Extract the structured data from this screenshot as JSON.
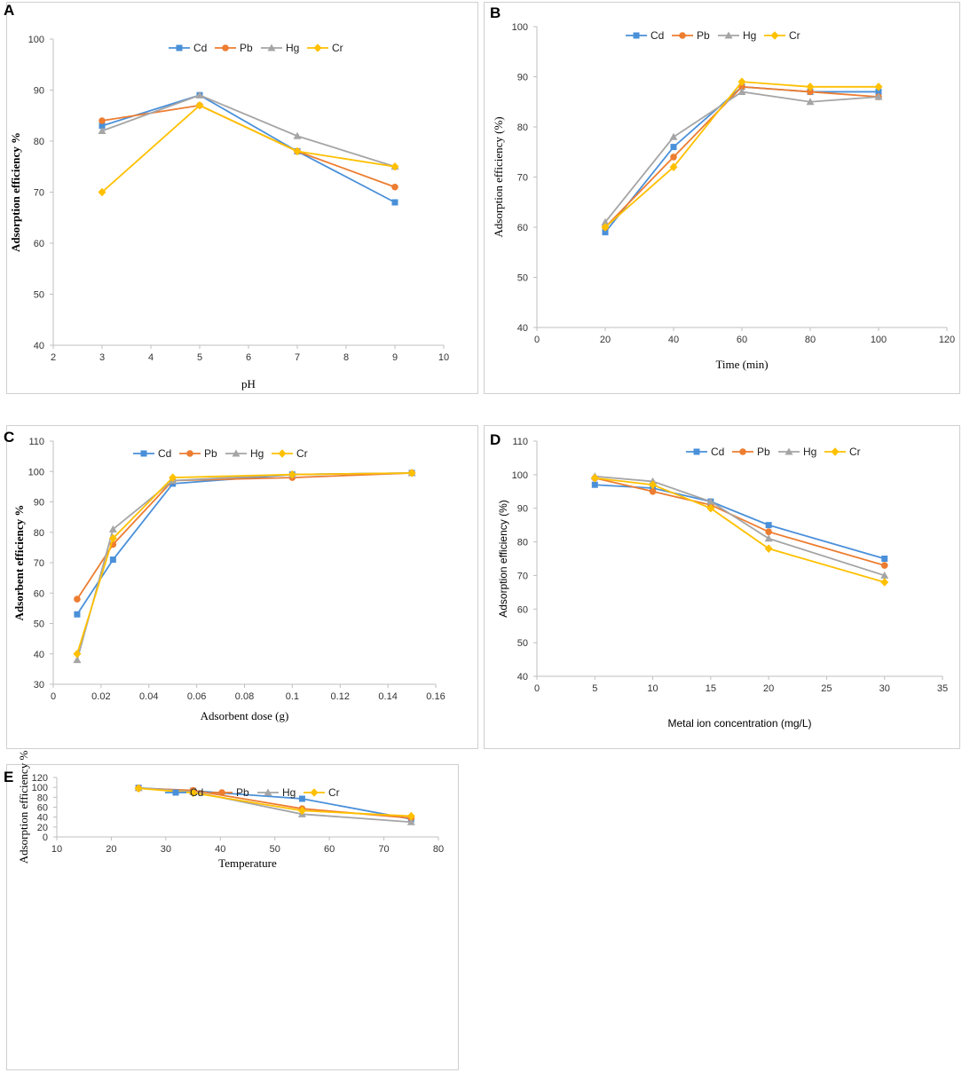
{
  "colors": {
    "Cd": "#4a90d9",
    "Pb": "#ed7d31",
    "Hg": "#a5a5a5",
    "Cr": "#ffc000"
  },
  "chart_data": [
    {
      "panel": "A",
      "type": "line",
      "title": "",
      "xlabel": "pH",
      "ylabel": "Adsorption efficiency %",
      "xlim": [
        2,
        10
      ],
      "ylim": [
        40,
        100
      ],
      "xticks": [
        2,
        3,
        4,
        5,
        6,
        7,
        8,
        9,
        10
      ],
      "yticks": [
        40,
        50,
        60,
        70,
        80,
        90,
        100
      ],
      "x": [
        3,
        5,
        7,
        9
      ],
      "series": [
        {
          "name": "Cd",
          "values": [
            83,
            89,
            78,
            68
          ]
        },
        {
          "name": "Pb",
          "values": [
            84,
            87,
            78,
            71
          ]
        },
        {
          "name": "Hg",
          "values": [
            82,
            89,
            81,
            75
          ]
        },
        {
          "name": "Cr",
          "values": [
            70,
            87,
            78,
            75
          ]
        }
      ]
    },
    {
      "panel": "B",
      "type": "line",
      "title": "",
      "xlabel": "Time (min)",
      "ylabel": "Adsorption efficiency (%)",
      "xlim": [
        0,
        120
      ],
      "ylim": [
        40,
        100
      ],
      "xticks": [
        0,
        20,
        40,
        60,
        80,
        100,
        120
      ],
      "yticks": [
        40,
        50,
        60,
        70,
        80,
        90,
        100
      ],
      "x": [
        20,
        40,
        60,
        80,
        100
      ],
      "series": [
        {
          "name": "Cd",
          "values": [
            59,
            76,
            88,
            87,
            87
          ]
        },
        {
          "name": "Pb",
          "values": [
            60,
            74,
            88,
            87,
            86
          ]
        },
        {
          "name": "Hg",
          "values": [
            61,
            78,
            87,
            85,
            86
          ]
        },
        {
          "name": "Cr",
          "values": [
            60,
            72,
            89,
            88,
            88
          ]
        }
      ]
    },
    {
      "panel": "C",
      "type": "line",
      "title": "",
      "xlabel": "Adsorbent dose (g)",
      "ylabel": "Adsorbent efficiency %",
      "xlim": [
        0,
        0.16
      ],
      "ylim": [
        30,
        110
      ],
      "xticks": [
        "0",
        "0.02",
        "0.04",
        "0.06",
        "0.08",
        "0.1",
        "0.12",
        "0.14",
        "0.16"
      ],
      "yticks": [
        30,
        40,
        50,
        60,
        70,
        80,
        90,
        100,
        110
      ],
      "x": [
        0.01,
        0.025,
        0.05,
        0.1,
        0.15
      ],
      "series": [
        {
          "name": "Cd",
          "values": [
            53,
            71,
            96,
            99,
            99.5
          ]
        },
        {
          "name": "Pb",
          "values": [
            58,
            76,
            97,
            98,
            99.5
          ]
        },
        {
          "name": "Hg",
          "values": [
            38,
            81,
            97,
            99,
            99.5
          ]
        },
        {
          "name": "Cr",
          "values": [
            40,
            78,
            98,
            99,
            99.5
          ]
        }
      ]
    },
    {
      "panel": "D",
      "type": "line",
      "title": "",
      "xlabel": "Metal ion concentration (mg/L)",
      "ylabel": "Adsorption efficiency (%)",
      "xlim": [
        0,
        35
      ],
      "ylim": [
        40,
        110
      ],
      "xticks": [
        0,
        5,
        10,
        15,
        20,
        25,
        30,
        35
      ],
      "yticks": [
        40,
        50,
        60,
        70,
        80,
        90,
        100,
        110
      ],
      "x": [
        5,
        10,
        15,
        20,
        30
      ],
      "series": [
        {
          "name": "Cd",
          "values": [
            97,
            96,
            92,
            85,
            75
          ]
        },
        {
          "name": "Pb",
          "values": [
            99,
            95,
            91,
            83,
            73
          ]
        },
        {
          "name": "Hg",
          "values": [
            99.5,
            98,
            92,
            81,
            70
          ]
        },
        {
          "name": "Cr",
          "values": [
            99,
            97,
            90,
            78,
            68
          ]
        }
      ]
    },
    {
      "panel": "E",
      "type": "line",
      "title": "",
      "xlabel": "Temperature",
      "ylabel": "Adsorption efficiency %",
      "xlim": [
        10,
        80
      ],
      "ylim": [
        0,
        120
      ],
      "xticks": [
        10,
        20,
        30,
        40,
        50,
        60,
        70,
        80
      ],
      "yticks": [
        0,
        20,
        40,
        60,
        80,
        100,
        120
      ],
      "x": [
        25,
        35,
        55,
        75
      ],
      "series": [
        {
          "name": "Cd",
          "values": [
            99,
            93,
            77,
            36
          ]
        },
        {
          "name": "Pb",
          "values": [
            98,
            94,
            57,
            38
          ]
        },
        {
          "name": "Hg",
          "values": [
            99,
            91,
            46,
            30
          ]
        },
        {
          "name": "Cr",
          "values": [
            98,
            89,
            53,
            42
          ]
        }
      ]
    }
  ]
}
